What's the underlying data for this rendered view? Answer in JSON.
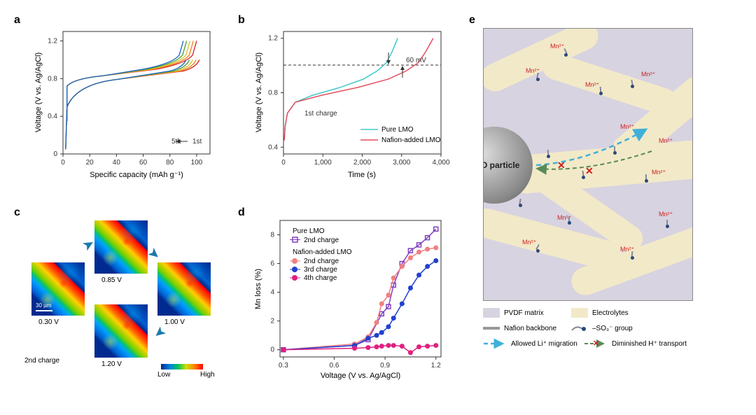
{
  "panelA": {
    "label": "a",
    "xlabel": "Specific capacity (mAh g⁻¹)",
    "ylabel": "Voltage (V vs. Ag/AgCl)",
    "xlim": [
      0,
      110
    ],
    "xticks": [
      0,
      20,
      40,
      60,
      80,
      100
    ],
    "ylim": [
      0,
      1.3
    ],
    "yticks": [
      0,
      0.4,
      0.8,
      1.2
    ],
    "annotation_5th": "5th",
    "annotation_1st": "1st",
    "curve_colors": [
      "#d82020",
      "#f08020",
      "#e0c020",
      "#40a040",
      "#2060c0"
    ]
  },
  "panelB": {
    "label": "b",
    "xlabel": "Time (s)",
    "ylabel": "Voltage (V vs. Ag/AgCl)",
    "xlim": [
      0,
      4000
    ],
    "xticks": [
      0,
      1000,
      2000,
      3000,
      4000
    ],
    "ylim": [
      0.35,
      1.25
    ],
    "yticks": [
      0.4,
      0.8,
      1.2
    ],
    "annotation_charge": "1st charge",
    "annotation_mv": "60 mV",
    "hline": 1.0,
    "legend": {
      "s1": "Pure LMO",
      "s2": "Nafion-added LMO"
    },
    "colors": {
      "s1": "#40c8c8",
      "s2": "#e05060"
    }
  },
  "panelC": {
    "label": "c",
    "voltages": [
      "0.30 V",
      "0.85 V",
      "1.00 V",
      "1.20 V"
    ],
    "charge_label": "2nd charge",
    "scalebar": "30 µm",
    "colorbar_low": "Low",
    "colorbar_high": "High"
  },
  "panelD": {
    "label": "d",
    "xlabel": "Voltage (V vs. Ag/AgCl)",
    "ylabel": "Mn loss (%)",
    "xlim": [
      0.28,
      1.23
    ],
    "xticks": [
      0.3,
      0.6,
      0.9,
      1.2
    ],
    "ylim": [
      -0.5,
      9
    ],
    "yticks": [
      0,
      2,
      4,
      6,
      8
    ],
    "legend": {
      "pure_header": "Pure LMO",
      "pure_2nd": "2nd charge",
      "nafion_header": "Nafion-added LMO",
      "nafion_2nd": "2nd charge",
      "nafion_3rd": "3rd charge",
      "nafion_4th": "4th charge"
    },
    "colors": {
      "pure": "#8040c0",
      "n2": "#f08080",
      "n3": "#2040d0",
      "n4": "#e02080"
    },
    "data_pure": [
      [
        0.3,
        0
      ],
      [
        0.72,
        0.3
      ],
      [
        0.8,
        0.7
      ],
      [
        0.88,
        2.5
      ],
      [
        0.92,
        3.0
      ],
      [
        0.95,
        4.5
      ],
      [
        1.0,
        6.0
      ],
      [
        1.05,
        6.9
      ],
      [
        1.1,
        7.3
      ],
      [
        1.15,
        7.8
      ],
      [
        1.2,
        8.4
      ]
    ],
    "data_n2": [
      [
        0.3,
        0
      ],
      [
        0.72,
        0.4
      ],
      [
        0.8,
        0.9
      ],
      [
        0.85,
        1.9
      ],
      [
        0.88,
        3.2
      ],
      [
        0.92,
        3.8
      ],
      [
        0.95,
        5.0
      ],
      [
        1.0,
        5.8
      ],
      [
        1.05,
        6.4
      ],
      [
        1.1,
        6.8
      ],
      [
        1.15,
        7.0
      ],
      [
        1.2,
        7.1
      ]
    ],
    "data_n3": [
      [
        0.3,
        0
      ],
      [
        0.72,
        0.3
      ],
      [
        0.8,
        0.8
      ],
      [
        0.85,
        1.0
      ],
      [
        0.88,
        1.2
      ],
      [
        0.92,
        1.6
      ],
      [
        0.95,
        2.2
      ],
      [
        1.0,
        3.2
      ],
      [
        1.05,
        4.3
      ],
      [
        1.1,
        5.2
      ],
      [
        1.15,
        5.8
      ],
      [
        1.2,
        6.2
      ]
    ],
    "data_n4": [
      [
        0.3,
        0
      ],
      [
        0.72,
        0.1
      ],
      [
        0.8,
        0.15
      ],
      [
        0.85,
        0.2
      ],
      [
        0.88,
        0.25
      ],
      [
        0.92,
        0.3
      ],
      [
        0.95,
        0.3
      ],
      [
        1.0,
        0.25
      ],
      [
        1.05,
        -0.2
      ],
      [
        1.1,
        0.2
      ],
      [
        1.15,
        0.25
      ],
      [
        1.2,
        0.3
      ]
    ]
  },
  "panelE": {
    "label": "e",
    "particle_text": "LMO particle",
    "mn_text": "Mn²⁺",
    "legend": {
      "pvdf": "PVDF matrix",
      "electrolytes": "Electrolytes",
      "backbone": "Nafion backbone",
      "so3": "–SO₃⁻ group",
      "li": "Allowed Li⁺ migration",
      "h": "Diminished H⁺ transport"
    },
    "colors": {
      "pvdf": "#d8d3e0",
      "elec": "#f2e9c8",
      "backbone": "#999999",
      "li_arrow": "#40b0d8",
      "h_arrow": "#5a8a5a"
    }
  }
}
